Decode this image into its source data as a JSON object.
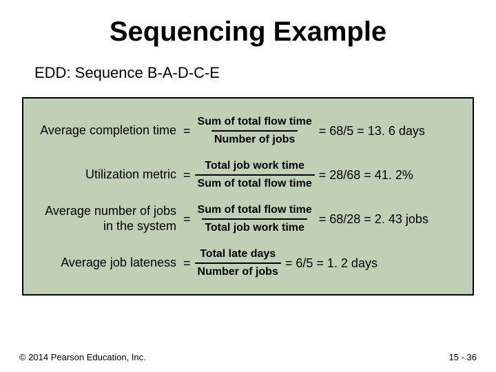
{
  "slide": {
    "title": "Sequencing Example",
    "subtitle": "EDD: Sequence B-A-D-C-E",
    "box_background": "#bfd0b4",
    "box_border": "#000000",
    "rows": [
      {
        "lhs": "Average completion time",
        "numerator": "Sum of total flow time",
        "denominator": "Number of jobs",
        "rhs": "= 68/5 = 13. 6 days"
      },
      {
        "lhs": "Utilization metric",
        "numerator": "Total job work time",
        "denominator": "Sum of total flow time",
        "rhs": "= 28/68 = 41. 2%"
      },
      {
        "lhs": "Average number of jobs in the system",
        "numerator": "Sum of total flow time",
        "denominator": "Total job work time",
        "rhs": "= 68/28 = 2. 43 jobs"
      },
      {
        "lhs": "Average job lateness",
        "numerator": "Total late days",
        "denominator": "Number of jobs",
        "rhs": "= 6/5 = 1. 2 days"
      }
    ],
    "footer_left": "© 2014 Pearson Education, Inc.",
    "footer_right": "15 - 36"
  }
}
